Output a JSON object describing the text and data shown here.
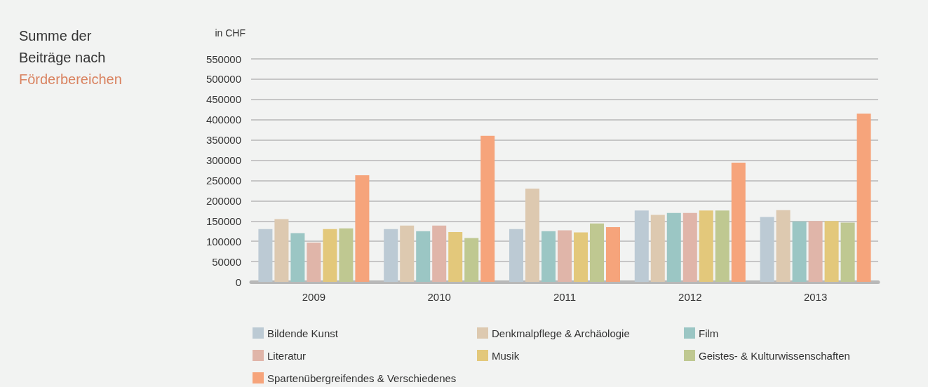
{
  "chart_data": {
    "type": "bar",
    "title": "Summe der Beiträge nach Förderbereichen",
    "ylabel": "in CHF",
    "categories": [
      "2009",
      "2010",
      "2011",
      "2012",
      "2013"
    ],
    "series": [
      {
        "name": "Bildende Kunst",
        "color": "#bccad4",
        "values": [
          130000,
          130000,
          130000,
          176000,
          160000
        ]
      },
      {
        "name": "Denkmalpflege & Archäologie",
        "color": "#ddc9b0",
        "values": [
          155000,
          139000,
          230000,
          165000,
          177000
        ]
      },
      {
        "name": "Film",
        "color": "#9bc6c4",
        "values": [
          120000,
          125000,
          125000,
          170000,
          149000
        ]
      },
      {
        "name": "Literatur",
        "color": "#e0b5a9",
        "values": [
          97000,
          139000,
          127000,
          170000,
          150000
        ]
      },
      {
        "name": "Musik",
        "color": "#e3c87b",
        "values": [
          130000,
          123000,
          122000,
          176000,
          150000
        ]
      },
      {
        "name": "Geistes- & Kulturwissenschaften",
        "color": "#bfc891",
        "values": [
          132000,
          108000,
          144000,
          176000,
          146000
        ]
      },
      {
        "name": "Spartenübergreifendes & Verschiedenes",
        "color": "#f6a47b",
        "values": [
          263000,
          360000,
          135000,
          294000,
          415000
        ]
      }
    ],
    "ylim": [
      0,
      550000
    ],
    "yticks": [
      0,
      50000,
      100000,
      150000,
      200000,
      250000,
      300000,
      350000,
      400000,
      450000,
      500000,
      550000
    ],
    "grid": "y",
    "legend": "bottom"
  }
}
